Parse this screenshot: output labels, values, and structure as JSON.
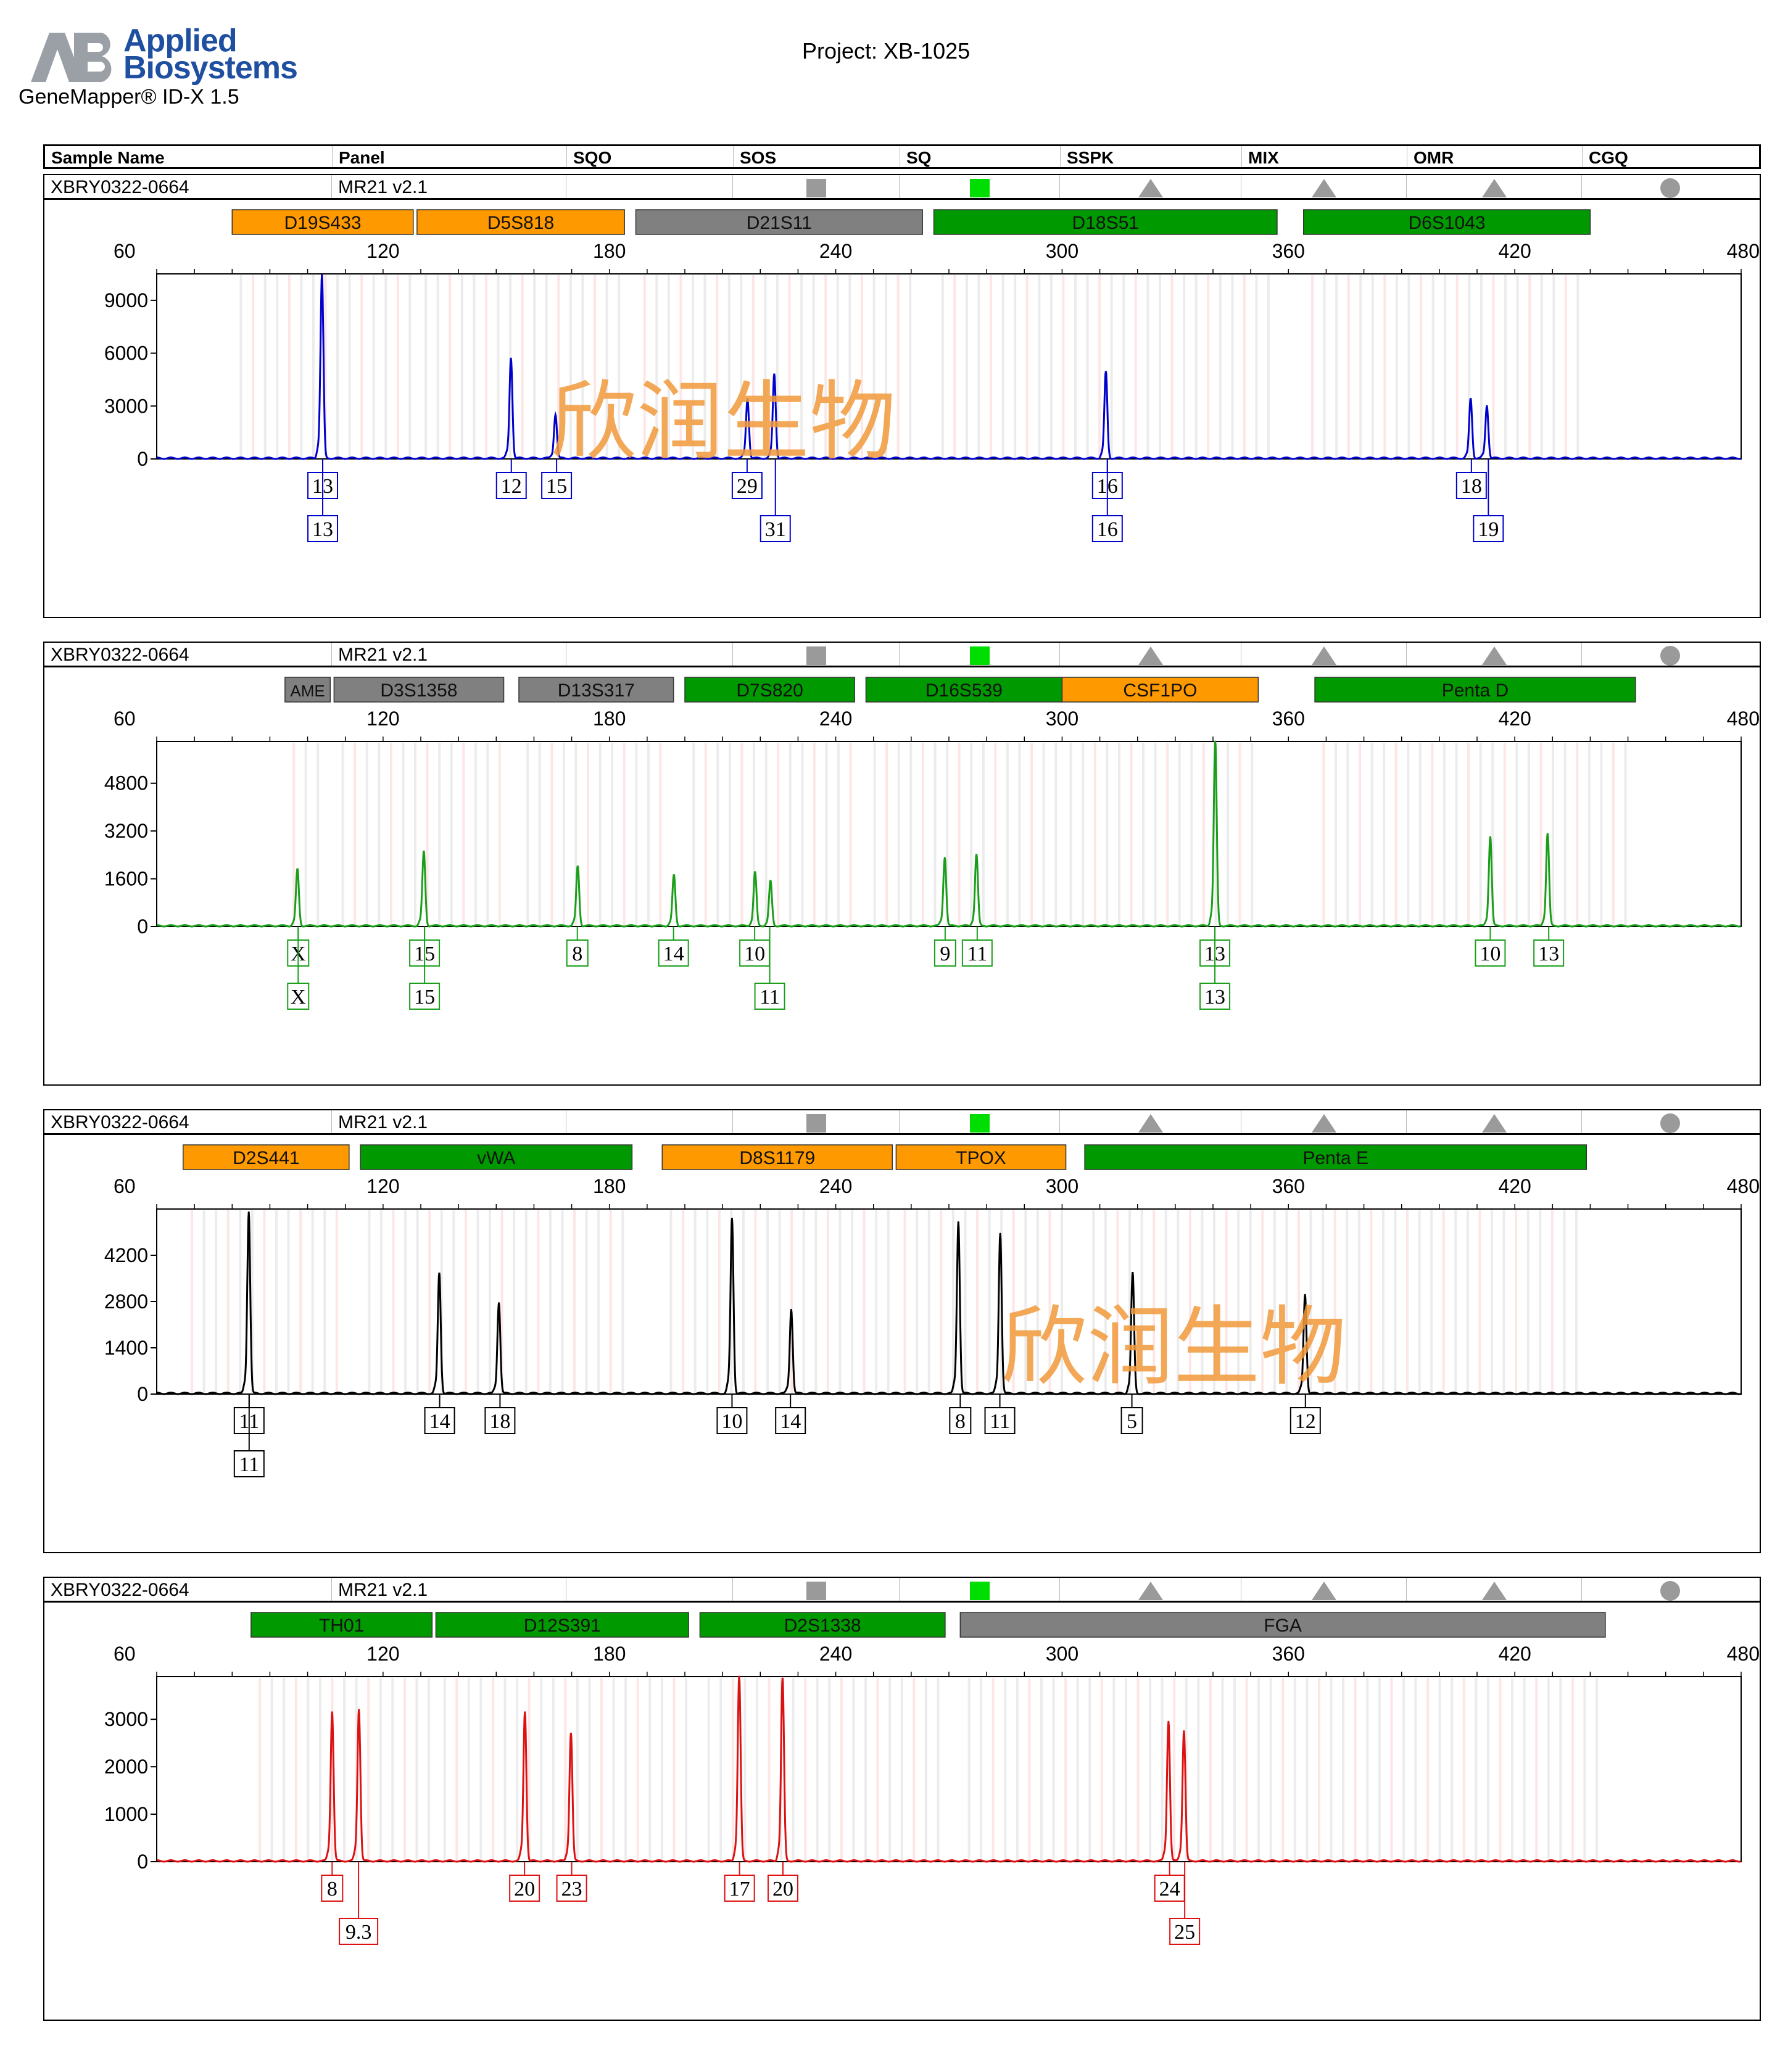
{
  "header": {
    "logo_letters": "AB",
    "brand_line1": "Applied",
    "brand_line2": "Biosystems",
    "software": "GeneMapper® ID-X  1.5",
    "project": "Project: XB-1025"
  },
  "columns": [
    "Sample Name",
    "Panel",
    "SQO",
    "SOS",
    "SQ",
    "SSPK",
    "MIX",
    "OMR",
    "CGQ"
  ],
  "watermark": "欣润生物",
  "colors": {
    "blue": "#0000cc",
    "green": "#1a9e1a",
    "black": "#000000",
    "red": "#dd1111",
    "locus_orange": "#ff9900",
    "locus_green": "#009900",
    "locus_gray": "#808080",
    "sq_green": "#00dd00"
  },
  "chart_data": [
    {
      "type": "line",
      "sample_name": "XBRY0322-0664",
      "panel": "MR21  v2.1",
      "dye": "blue",
      "xlim": [
        60,
        480
      ],
      "x_ticks": [
        60,
        120,
        180,
        240,
        300,
        360,
        420,
        480
      ],
      "ylim": [
        0,
        10500
      ],
      "y_ticks": [
        0,
        3000,
        6000,
        9000
      ],
      "loci": [
        {
          "name": "D19S433",
          "start": 80,
          "end": 128,
          "color": "orange"
        },
        {
          "name": "D5S818",
          "start": 129,
          "end": 184,
          "color": "orange"
        },
        {
          "name": "D21S11",
          "start": 187,
          "end": 263,
          "color": "gray"
        },
        {
          "name": "D18S51",
          "start": 266,
          "end": 357,
          "color": "green"
        },
        {
          "name": "D6S1043",
          "start": 364,
          "end": 440,
          "color": "green"
        }
      ],
      "peaks": [
        {
          "x": 103.8,
          "y": 10400
        },
        {
          "x": 153.9,
          "y": 5700
        },
        {
          "x": 165.7,
          "y": 2500
        },
        {
          "x": 216.6,
          "y": 3400
        },
        {
          "x": 223.7,
          "y": 4800
        },
        {
          "x": 311.6,
          "y": 4900
        },
        {
          "x": 408.3,
          "y": 3400
        },
        {
          "x": 412.6,
          "y": 3000
        }
      ],
      "alleles": [
        {
          "label": "13",
          "x": 104,
          "row": 1
        },
        {
          "label": "13",
          "x": 104,
          "row": 2
        },
        {
          "label": "12",
          "x": 154,
          "row": 1
        },
        {
          "label": "15",
          "x": 166,
          "row": 1
        },
        {
          "label": "29",
          "x": 216.5,
          "row": 1
        },
        {
          "label": "31",
          "x": 224,
          "row": 2
        },
        {
          "label": "16",
          "x": 312,
          "row": 1
        },
        {
          "label": "16",
          "x": 312,
          "row": 2
        },
        {
          "label": "18",
          "x": 408.5,
          "row": 1
        },
        {
          "label": "19",
          "x": 413,
          "row": 2
        }
      ]
    },
    {
      "type": "line",
      "sample_name": "XBRY0322-0664",
      "panel": "MR21  v2.1",
      "dye": "green",
      "xlim": [
        60,
        480
      ],
      "x_ticks": [
        60,
        120,
        180,
        240,
        300,
        360,
        420,
        480
      ],
      "ylim": [
        0,
        6200
      ],
      "y_ticks": [
        0,
        1600,
        3200,
        4800
      ],
      "loci": [
        {
          "name": "AME",
          "start": 94,
          "end": 106,
          "color": "gray"
        },
        {
          "name": "D3S1358",
          "start": 107,
          "end": 152,
          "color": "gray"
        },
        {
          "name": "D13S317",
          "start": 156,
          "end": 197,
          "color": "gray"
        },
        {
          "name": "D7S820",
          "start": 200,
          "end": 245,
          "color": "green"
        },
        {
          "name": "D16S539",
          "start": 248,
          "end": 300,
          "color": "green"
        },
        {
          "name": "CSF1PO",
          "start": 300,
          "end": 352,
          "color": "orange"
        },
        {
          "name": "Penta D",
          "start": 367,
          "end": 452,
          "color": "green"
        }
      ],
      "peaks": [
        {
          "x": 97.3,
          "y": 1900
        },
        {
          "x": 130.8,
          "y": 2500
        },
        {
          "x": 171.6,
          "y": 2000
        },
        {
          "x": 197.1,
          "y": 1700
        },
        {
          "x": 218.6,
          "y": 1800
        },
        {
          "x": 222.7,
          "y": 1500
        },
        {
          "x": 268.9,
          "y": 2300
        },
        {
          "x": 277.3,
          "y": 2400
        },
        {
          "x": 340.6,
          "y": 6200
        },
        {
          "x": 413.5,
          "y": 3000
        },
        {
          "x": 428.7,
          "y": 3100
        }
      ],
      "alleles": [
        {
          "label": "X",
          "x": 97.5,
          "row": 1
        },
        {
          "label": "X",
          "x": 97.5,
          "row": 2
        },
        {
          "label": "15",
          "x": 131,
          "row": 1
        },
        {
          "label": "15",
          "x": 131,
          "row": 2
        },
        {
          "label": "8",
          "x": 171.5,
          "row": 1
        },
        {
          "label": "14",
          "x": 197,
          "row": 1
        },
        {
          "label": "10",
          "x": 218.5,
          "row": 1
        },
        {
          "label": "11",
          "x": 222.5,
          "row": 2
        },
        {
          "label": "9",
          "x": 269,
          "row": 1
        },
        {
          "label": "11",
          "x": 277.5,
          "row": 1
        },
        {
          "label": "13",
          "x": 340.5,
          "row": 1
        },
        {
          "label": "13",
          "x": 340.5,
          "row": 2
        },
        {
          "label": "10",
          "x": 413.5,
          "row": 1
        },
        {
          "label": "13",
          "x": 429,
          "row": 1
        }
      ]
    },
    {
      "type": "line",
      "sample_name": "XBRY0322-0664",
      "panel": "MR21  v2.1",
      "dye": "black",
      "xlim": [
        60,
        480
      ],
      "x_ticks": [
        60,
        120,
        180,
        240,
        300,
        360,
        420,
        480
      ],
      "ylim": [
        0,
        5600
      ],
      "y_ticks": [
        0,
        1400,
        2800,
        4200
      ],
      "loci": [
        {
          "name": "D2S441",
          "start": 67,
          "end": 111,
          "color": "orange"
        },
        {
          "name": "vWA",
          "start": 114,
          "end": 186,
          "color": "green"
        },
        {
          "name": "D8S1179",
          "start": 194,
          "end": 255,
          "color": "orange"
        },
        {
          "name": "TPOX",
          "start": 256,
          "end": 301,
          "color": "orange"
        },
        {
          "name": "Penta E",
          "start": 306,
          "end": 439,
          "color": "green"
        }
      ],
      "peaks": [
        {
          "x": 84.4,
          "y": 5500
        },
        {
          "x": 134.9,
          "y": 3650
        },
        {
          "x": 150.7,
          "y": 2750
        },
        {
          "x": 212.5,
          "y": 5300
        },
        {
          "x": 228.2,
          "y": 2550
        },
        {
          "x": 272.5,
          "y": 5200
        },
        {
          "x": 283.6,
          "y": 4850
        },
        {
          "x": 318.7,
          "y": 3650
        },
        {
          "x": 364.4,
          "y": 3000
        }
      ],
      "alleles": [
        {
          "label": "11",
          "x": 84.5,
          "row": 1
        },
        {
          "label": "11",
          "x": 84.5,
          "row": 2
        },
        {
          "label": "14",
          "x": 135,
          "row": 1
        },
        {
          "label": "18",
          "x": 151,
          "row": 1
        },
        {
          "label": "10",
          "x": 212.5,
          "row": 1
        },
        {
          "label": "14",
          "x": 228,
          "row": 1
        },
        {
          "label": "8",
          "x": 273,
          "row": 1
        },
        {
          "label": "11",
          "x": 283.5,
          "row": 1
        },
        {
          "label": "5",
          "x": 318.5,
          "row": 1
        },
        {
          "label": "12",
          "x": 364.5,
          "row": 1
        }
      ]
    },
    {
      "type": "line",
      "sample_name": "XBRY0322-0664",
      "panel": "MR21  v2.1",
      "dye": "red",
      "xlim": [
        60,
        480
      ],
      "x_ticks": [
        60,
        120,
        180,
        240,
        300,
        360,
        420,
        480
      ],
      "ylim": [
        0,
        3900
      ],
      "y_ticks": [
        0,
        1000,
        2000,
        3000
      ],
      "loci": [
        {
          "name": "TH01",
          "start": 85,
          "end": 133,
          "color": "green"
        },
        {
          "name": "D12S391",
          "start": 134,
          "end": 201,
          "color": "green"
        },
        {
          "name": "D2S1338",
          "start": 204,
          "end": 269,
          "color": "green"
        },
        {
          "name": "FGA",
          "start": 273,
          "end": 444,
          "color": "gray"
        }
      ],
      "peaks": [
        {
          "x": 106.5,
          "y": 3150
        },
        {
          "x": 113.6,
          "y": 3200
        },
        {
          "x": 157.6,
          "y": 3150
        },
        {
          "x": 169.8,
          "y": 2700
        },
        {
          "x": 214.4,
          "y": 3900
        },
        {
          "x": 225.9,
          "y": 3850
        },
        {
          "x": 328.2,
          "y": 2950
        },
        {
          "x": 332.3,
          "y": 2750
        }
      ],
      "alleles": [
        {
          "label": "8",
          "x": 106.5,
          "row": 1
        },
        {
          "label": "9.3",
          "x": 113.5,
          "row": 2
        },
        {
          "label": "20",
          "x": 157.5,
          "row": 1
        },
        {
          "label": "23",
          "x": 170,
          "row": 1
        },
        {
          "label": "17",
          "x": 214.5,
          "row": 1
        },
        {
          "label": "20",
          "x": 226,
          "row": 1
        },
        {
          "label": "24",
          "x": 328.5,
          "row": 1
        },
        {
          "label": "25",
          "x": 332.5,
          "row": 2
        }
      ]
    }
  ]
}
